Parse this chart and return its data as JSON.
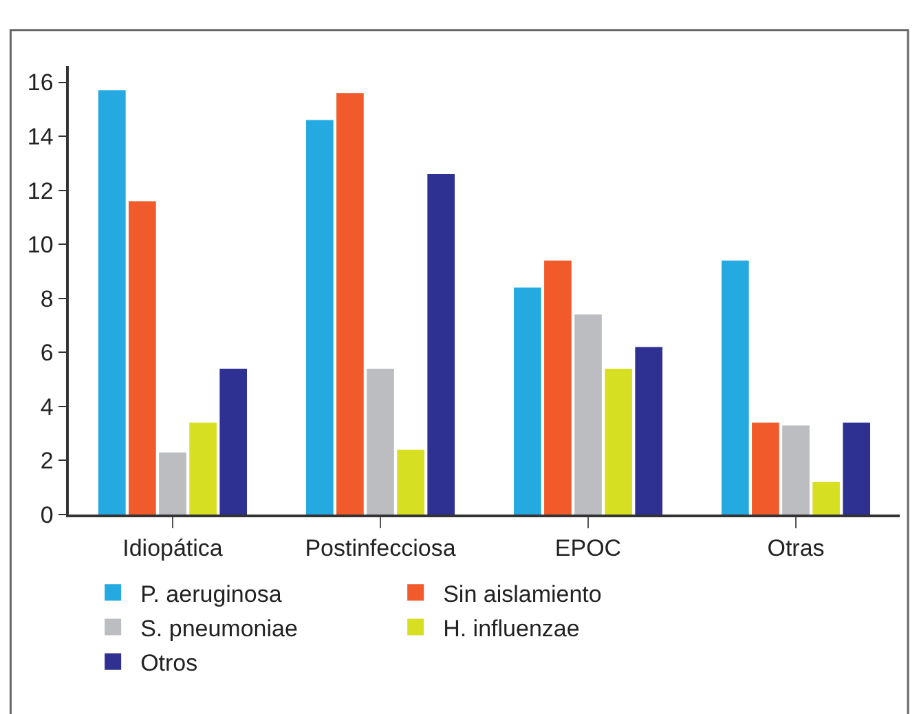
{
  "chart_data": {
    "type": "bar",
    "categories": [
      "Idiopática",
      "Postinfecciosa",
      "EPOC",
      "Otras"
    ],
    "series": [
      {
        "name": "P. aeruginosa",
        "color": "#24a9e1",
        "values": [
          15.7,
          14.6,
          8.4,
          9.4
        ]
      },
      {
        "name": "Sin aislamiento",
        "color": "#f15a2b",
        "values": [
          11.6,
          15.6,
          9.4,
          3.4
        ]
      },
      {
        "name": "S. pneumoniae",
        "color": "#bcbdc0",
        "values": [
          2.3,
          5.4,
          7.4,
          3.3
        ]
      },
      {
        "name": "H. influenzae",
        "color": "#d7df23",
        "values": [
          3.4,
          2.4,
          5.4,
          1.2
        ]
      },
      {
        "name": "Otros",
        "color": "#2e3192",
        "values": [
          5.4,
          12.6,
          6.2,
          3.4
        ]
      }
    ],
    "ylim": [
      0,
      16.6
    ],
    "yticks": [
      0,
      2,
      4,
      6,
      8,
      10,
      12,
      14,
      16
    ],
    "legend": "bottom"
  }
}
